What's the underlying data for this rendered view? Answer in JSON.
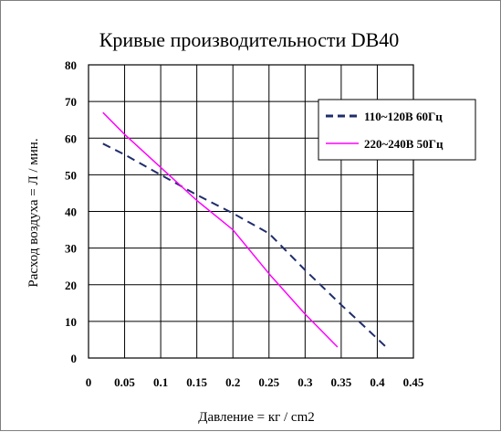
{
  "chart_data": {
    "type": "line",
    "title": "Кривые производительности DB40",
    "xlabel": "Давление = кг / cm2",
    "ylabel": "Расход воздуха = Л / мин.",
    "xlim": [
      0,
      0.45
    ],
    "ylim": [
      0,
      80
    ],
    "xticks": [
      "0",
      "0.05",
      "0.1",
      "0.15",
      "0.2",
      "0.25",
      "0.3",
      "0.35",
      "0.4",
      "0.45"
    ],
    "yticks": [
      "0",
      "10",
      "20",
      "30",
      "40",
      "50",
      "60",
      "70",
      "80"
    ],
    "grid": true,
    "legend_position": "top-right",
    "series": [
      {
        "name": "110~120В 60Гц",
        "color": "#1f2d6b",
        "style": "dashed",
        "x": [
          0.02,
          0.05,
          0.1,
          0.15,
          0.2,
          0.25,
          0.3,
          0.35,
          0.38,
          0.415
        ],
        "y": [
          58.5,
          55.5,
          50,
          44.5,
          39.5,
          34,
          24,
          14.5,
          9,
          2.5
        ]
      },
      {
        "name": "220~240В 50Гц",
        "color": "#ff00ff",
        "style": "solid",
        "x": [
          0.02,
          0.05,
          0.1,
          0.15,
          0.2,
          0.25,
          0.3,
          0.345
        ],
        "y": [
          67,
          61,
          52,
          43,
          35,
          23,
          12,
          3
        ]
      }
    ]
  }
}
